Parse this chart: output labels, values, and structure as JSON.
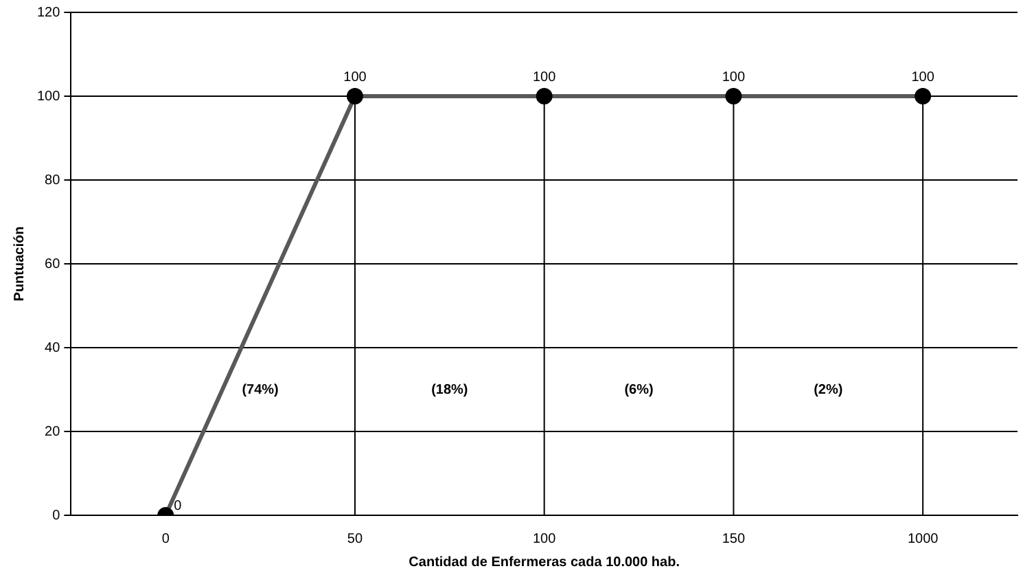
{
  "chart_data": {
    "type": "line",
    "xlabel": "Cantidad de Enfermeras cada 10.000 hab.",
    "ylabel": "Puntuación",
    "categories": [
      "0",
      "50",
      "100",
      "150",
      "1000"
    ],
    "series": [
      {
        "color": "#595959",
        "values": [
          0,
          100,
          100,
          100,
          100
        ]
      }
    ],
    "ylim": [
      0,
      120
    ],
    "yticks": [
      0,
      20,
      40,
      60,
      80,
      100,
      120
    ],
    "grid": "y",
    "legend": false,
    "marker": "circle",
    "line_style": "solid",
    "data_labels": true,
    "ref_lines": [
      {
        "axis": "x",
        "value": "50",
        "color": "#000000"
      },
      {
        "axis": "x",
        "value": "100",
        "color": "#000000"
      },
      {
        "axis": "x",
        "value": "150",
        "color": "#000000"
      },
      {
        "axis": "x",
        "value": "1000",
        "color": "#000000"
      }
    ],
    "annotations": [
      "(74%)",
      "(18%)",
      "(6%)",
      "(2%)"
    ]
  }
}
